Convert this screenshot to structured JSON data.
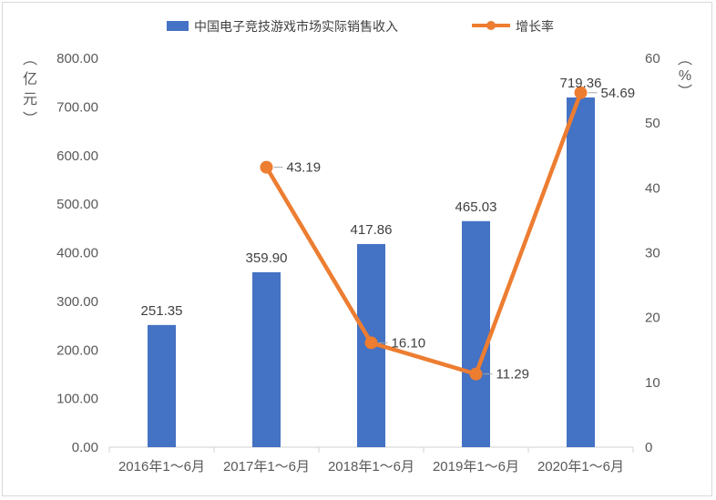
{
  "chart_data": {
    "type": "bar",
    "categories": [
      "2016年1～6月",
      "2017年1～6月",
      "2018年1～6月",
      "2019年1～6月",
      "2020年1～6月"
    ],
    "series": [
      {
        "name": "中国电子竞技游戏市场实际销售收入",
        "type": "bar",
        "axis": "left",
        "color": "#4472c4",
        "values": [
          251.35,
          359.9,
          417.86,
          465.03,
          719.36
        ],
        "labels": [
          "251.35",
          "359.90",
          "417.86",
          "465.03",
          "719.36"
        ]
      },
      {
        "name": "增长率",
        "type": "line",
        "axis": "right",
        "color": "#ed7d31",
        "values": [
          null,
          43.19,
          16.1,
          11.29,
          54.69
        ],
        "labels": [
          "",
          "43.19",
          "16.10",
          "11.29",
          "54.69"
        ]
      }
    ],
    "y_left": {
      "label": "（亿元）",
      "ylim": [
        0,
        800
      ],
      "ticks": [
        "0.00",
        "100.00",
        "200.00",
        "300.00",
        "400.00",
        "500.00",
        "600.00",
        "700.00",
        "800.00"
      ]
    },
    "y_right": {
      "label": "（%）",
      "ylim": [
        0,
        60
      ],
      "ticks": [
        "0",
        "10",
        "20",
        "30",
        "40",
        "50",
        "60"
      ]
    },
    "grid": false,
    "legend": "top"
  }
}
